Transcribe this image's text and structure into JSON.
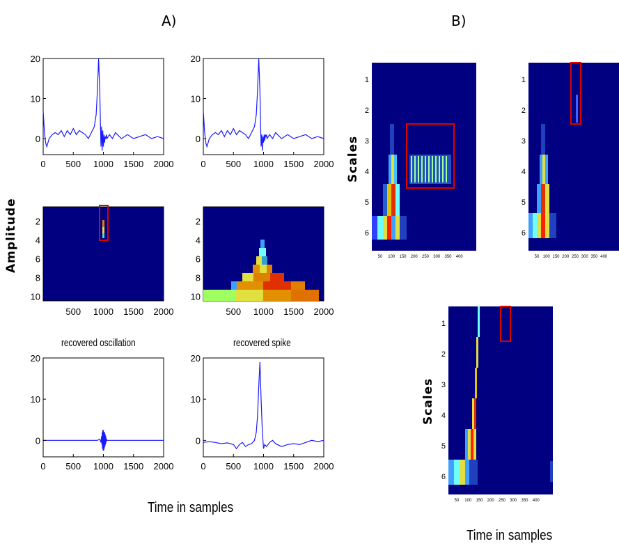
{
  "panel_a_label": "A)",
  "panel_b_label": "B)",
  "panel_a_ylabel": "Amplitude",
  "panel_a_xlabel": "Time in samples",
  "panel_b_xlabel": "Time in samples",
  "colors": {
    "signal": "#1a1aff",
    "bg": "#000080",
    "box": "#e00000"
  },
  "chart_data": [
    {
      "id": "a-signal-left",
      "type": "line",
      "title": "",
      "xlim": [
        0,
        2000
      ],
      "ylim": [
        -4,
        20
      ],
      "xticks": [
        "0",
        "500",
        "1000",
        "1500",
        "2000"
      ],
      "yticks": [
        "0",
        "10",
        "20"
      ],
      "x": [
        0,
        20,
        40,
        60,
        80,
        100,
        150,
        200,
        250,
        300,
        350,
        400,
        450,
        500,
        550,
        600,
        650,
        700,
        750,
        800,
        850,
        880,
        900,
        920,
        940,
        950,
        960,
        970,
        980,
        990,
        1000,
        1010,
        1020,
        1030,
        1040,
        1050,
        1060,
        1080,
        1100,
        1150,
        1200,
        1300,
        1400,
        1500,
        1600,
        1700,
        1800,
        1900,
        2000
      ],
      "values": [
        7,
        2,
        -1,
        -2,
        -1,
        0,
        1,
        1.5,
        1,
        2,
        0.5,
        2,
        1,
        2.5,
        1,
        2,
        1.5,
        1,
        0,
        1.5,
        3,
        6,
        12,
        20,
        12,
        4,
        -2,
        3,
        -3,
        2,
        -2,
        1,
        -1,
        0.5,
        0,
        1,
        0,
        0.5,
        1,
        0,
        1.5,
        0,
        1,
        0,
        0.5,
        1,
        0,
        0.5,
        0
      ]
    },
    {
      "id": "a-signal-right",
      "type": "line",
      "title": "",
      "xlim": [
        0,
        2000
      ],
      "ylim": [
        -4,
        20
      ],
      "xticks": [
        "0",
        "500",
        "1000",
        "1500",
        "2000"
      ],
      "yticks": [
        "0",
        "10",
        "20"
      ],
      "x": [
        0,
        20,
        40,
        60,
        80,
        100,
        150,
        200,
        250,
        300,
        350,
        400,
        450,
        500,
        550,
        600,
        650,
        700,
        750,
        800,
        850,
        880,
        900,
        920,
        940,
        950,
        960,
        970,
        980,
        990,
        1000,
        1010,
        1020,
        1030,
        1040,
        1050,
        1060,
        1080,
        1100,
        1150,
        1200,
        1300,
        1400,
        1500,
        1600,
        1700,
        1800,
        1900,
        2000
      ],
      "values": [
        7,
        2,
        -1,
        -2,
        -1,
        0,
        1,
        1.5,
        1,
        2,
        0.5,
        2,
        1,
        2.5,
        1,
        2,
        1.5,
        1,
        0,
        1.5,
        3,
        6,
        12,
        20,
        12,
        4,
        -2,
        1,
        -3,
        0.5,
        -1,
        1,
        -0.5,
        1,
        0.5,
        1,
        0,
        0.5,
        1,
        0,
        1.5,
        0,
        1,
        0,
        0.5,
        1,
        0,
        0.5,
        0
      ]
    },
    {
      "id": "a-map-left",
      "type": "heatmap",
      "title": "",
      "xticks": [
        "500",
        "1000",
        "1500",
        "2000"
      ],
      "yticks": [
        "2",
        "4",
        "6",
        "8",
        "10"
      ]
    },
    {
      "id": "a-map-right",
      "type": "heatmap",
      "title": "",
      "xticks": [
        "500",
        "1000",
        "1500",
        "2000"
      ],
      "yticks": [
        "2",
        "4",
        "6",
        "8",
        "10"
      ]
    },
    {
      "id": "a-oscillation",
      "type": "line",
      "title": "recovered oscillation",
      "xlim": [
        0,
        2000
      ],
      "ylim": [
        -4,
        20
      ],
      "xticks": [
        "0",
        "500",
        "1000",
        "1500",
        "2000"
      ],
      "yticks": [
        "0",
        "10",
        "20"
      ],
      "x": [
        0,
        900,
        940,
        960,
        970,
        975,
        980,
        985,
        990,
        995,
        1000,
        1005,
        1010,
        1015,
        1020,
        1025,
        1030,
        1035,
        1040,
        1045,
        1050,
        1060,
        1080,
        1100,
        1150,
        2000
      ],
      "values": [
        0,
        0,
        0.3,
        -0.5,
        1,
        -1,
        2,
        -2,
        2.5,
        -2.5,
        2.5,
        -2.5,
        2,
        -2,
        2,
        -1.5,
        1.5,
        -1,
        1,
        -0.5,
        0.3,
        0,
        0,
        0,
        0,
        0
      ]
    },
    {
      "id": "a-spike",
      "type": "line",
      "title": "recovered spike",
      "xlim": [
        0,
        2000
      ],
      "ylim": [
        -4,
        20
      ],
      "xticks": [
        "0",
        "500",
        "1000",
        "1500",
        "2000"
      ],
      "yticks": [
        "0",
        "10",
        "20"
      ],
      "x": [
        0,
        100,
        200,
        300,
        400,
        500,
        550,
        600,
        650,
        700,
        750,
        800,
        850,
        880,
        900,
        920,
        940,
        960,
        980,
        1000,
        1020,
        1050,
        1100,
        1150,
        1200,
        1300,
        1400,
        1500,
        1600,
        1700,
        1800,
        1900,
        2000
      ],
      "values": [
        -0.5,
        -0.3,
        -0.5,
        -0.8,
        -0.6,
        -1,
        -2,
        -1,
        -0.5,
        -1.5,
        -1,
        -0.8,
        0,
        2,
        6,
        13,
        19,
        10,
        2,
        -2,
        -1,
        -1.5,
        -0.5,
        0,
        -0.8,
        -1.5,
        -1,
        -0.8,
        -1,
        -0.5,
        0,
        -0.3,
        0
      ]
    },
    {
      "id": "b-scalogram-1",
      "type": "heatmap",
      "ylabel": "Scales",
      "yticks": [
        "1",
        "2",
        "3",
        "4",
        "5",
        "6"
      ],
      "xticks": [
        "50",
        "100",
        "150",
        "200",
        "250",
        "300",
        "350",
        "400"
      ]
    },
    {
      "id": "b-scalogram-2",
      "type": "heatmap",
      "yticks": [
        "1",
        "2",
        "3",
        "4",
        "5",
        "6"
      ],
      "xticks": [
        "50",
        "100",
        "150",
        "200",
        "250",
        "300",
        "350",
        "400"
      ]
    },
    {
      "id": "b-scalogram-3",
      "type": "heatmap",
      "ylabel": "Scales",
      "yticks": [
        "1",
        "2",
        "3",
        "4",
        "5",
        "6"
      ],
      "xticks": [
        "50",
        "100",
        "150",
        "200",
        "250",
        "300",
        "350",
        "400"
      ]
    }
  ]
}
